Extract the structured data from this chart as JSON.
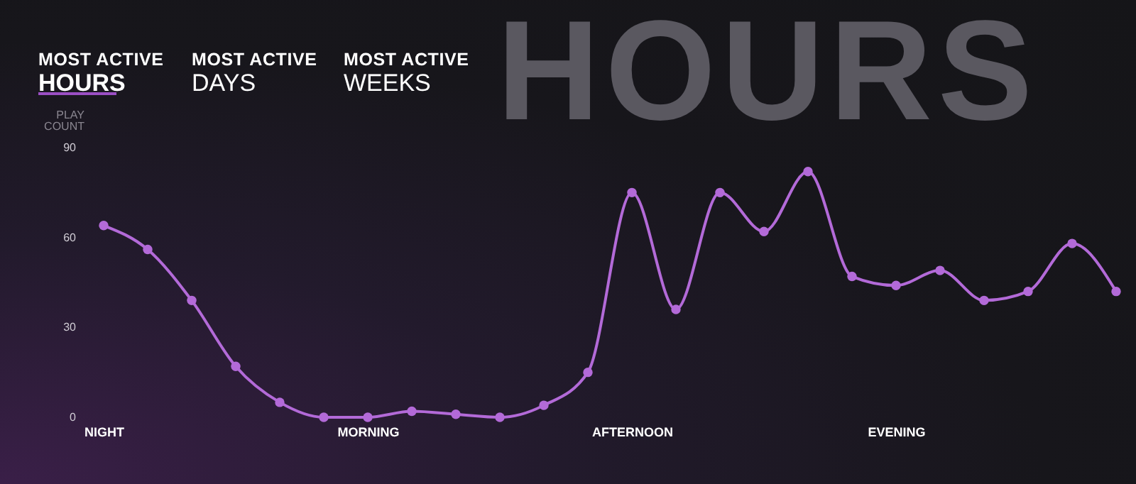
{
  "chart_data": {
    "type": "line",
    "annotations": [
      "HOURS",
      "MOST ACTIVE",
      "HOURS",
      "MOST ACTIVE",
      "DAYS",
      "MOST ACTIVE",
      "WEEKS"
    ],
    "ylabel": "PLAY COUNT",
    "categories": [
      "NIGHT",
      null,
      null,
      null,
      null,
      null,
      "MORNING",
      null,
      null,
      null,
      null,
      null,
      "AFTERNOON",
      null,
      null,
      null,
      null,
      null,
      "EVENING",
      null,
      null,
      null,
      null,
      null
    ],
    "values": [
      64,
      56,
      39,
      17,
      5,
      0,
      0,
      2,
      1,
      0,
      4,
      15,
      75,
      36,
      75,
      62,
      82,
      47,
      44,
      49,
      39,
      42,
      58,
      42
    ],
    "color": "#b36ad8",
    "ylim": [
      0,
      90
    ],
    "yticks": [
      0,
      30,
      60,
      90
    ],
    "marker": "circle",
    "grid": false
  }
}
